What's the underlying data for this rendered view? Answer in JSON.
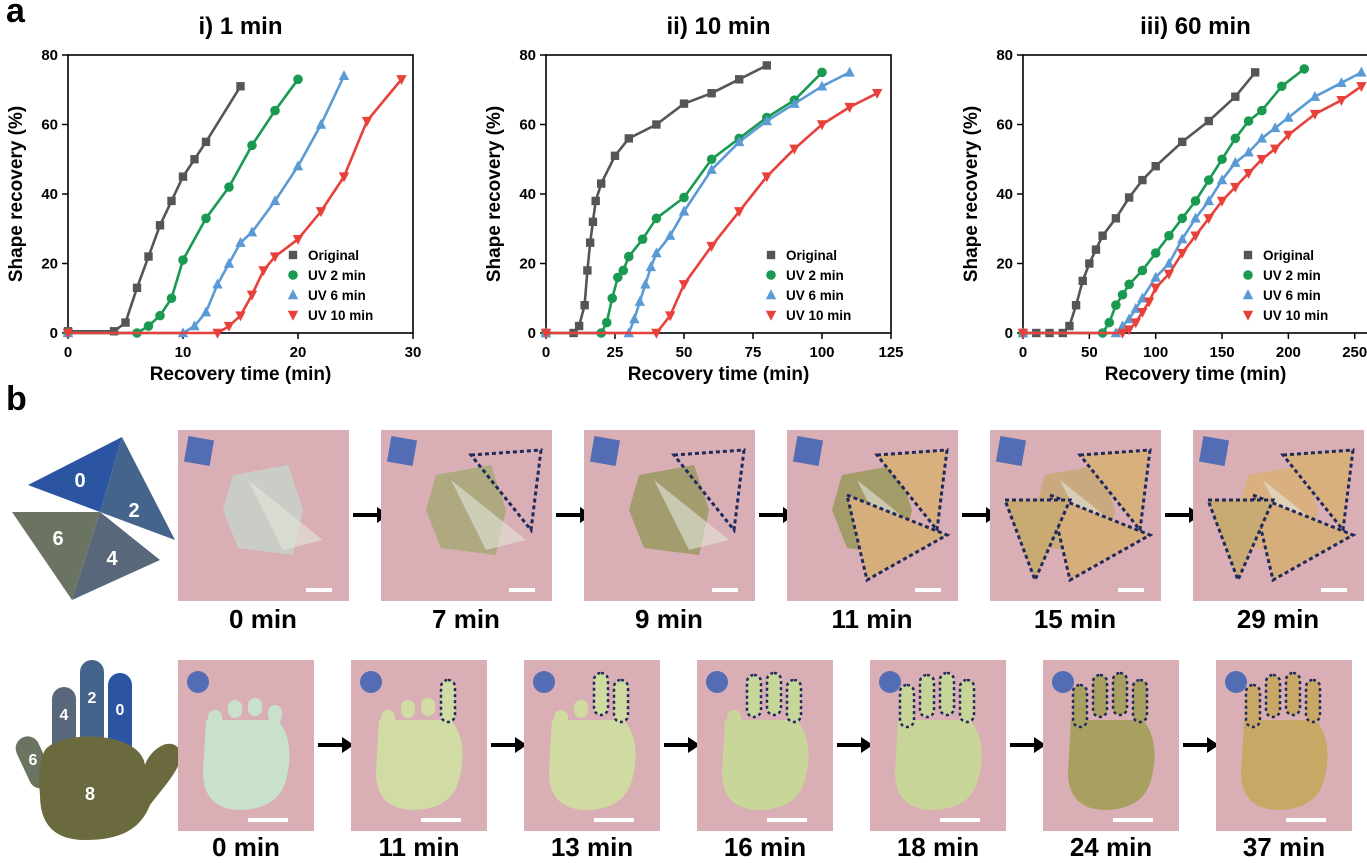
{
  "panel_labels": {
    "a": "a",
    "b": "b"
  },
  "colors": {
    "Original": "#555555",
    "UV 2 min": "#1a9950",
    "UV 6 min": "#5b9bd5",
    "UV 10 min": "#e8403a"
  },
  "chart_data": [
    {
      "type": "line",
      "title": "i) 1 min",
      "xlabel": "Recovery time (min)",
      "ylabel": "Shape recovery (%)",
      "xlim": [
        0,
        30
      ],
      "ylim": [
        0,
        80
      ],
      "xticks": [
        0,
        10,
        20,
        30
      ],
      "yticks": [
        0,
        20,
        40,
        60,
        80
      ],
      "legend_position": "bottom-right",
      "series": [
        {
          "name": "Original",
          "marker": "square",
          "x": [
            0,
            4,
            5,
            6,
            7,
            8,
            9,
            10,
            11,
            12,
            15
          ],
          "y": [
            0.5,
            0.5,
            3,
            13,
            22,
            31,
            38,
            45,
            50,
            55,
            71
          ]
        },
        {
          "name": "UV 2 min",
          "marker": "circle",
          "x": [
            0,
            6,
            7,
            8,
            9,
            10,
            12,
            14,
            16,
            18,
            20
          ],
          "y": [
            0,
            0,
            2,
            5,
            10,
            21,
            33,
            42,
            54,
            64,
            73
          ]
        },
        {
          "name": "UV 6 min",
          "marker": "triangle-up",
          "x": [
            0,
            10,
            11,
            12,
            13,
            14,
            15,
            16,
            18,
            20,
            22,
            24
          ],
          "y": [
            0,
            0,
            2,
            6,
            14,
            20,
            26,
            29,
            38,
            48,
            60,
            74
          ]
        },
        {
          "name": "UV 10 min",
          "marker": "triangle-down",
          "x": [
            0,
            13,
            14,
            15,
            16,
            17,
            18,
            20,
            22,
            24,
            26,
            29
          ],
          "y": [
            0,
            0,
            2,
            5,
            11,
            18,
            22,
            27,
            35,
            45,
            61,
            73
          ]
        }
      ]
    },
    {
      "type": "line",
      "title": "ii) 10 min",
      "xlabel": "Recovery time (min)",
      "ylabel": "Shape recovery (%)",
      "xlim": [
        0,
        125
      ],
      "ylim": [
        0,
        80
      ],
      "xticks": [
        0,
        25,
        50,
        75,
        100,
        125
      ],
      "yticks": [
        0,
        20,
        40,
        60,
        80
      ],
      "legend_position": "bottom-right",
      "series": [
        {
          "name": "Original",
          "marker": "square",
          "x": [
            0,
            10,
            12,
            14,
            15,
            16,
            17,
            18,
            20,
            25,
            30,
            40,
            50,
            60,
            70,
            80
          ],
          "y": [
            0,
            0,
            2,
            8,
            18,
            26,
            32,
            38,
            43,
            51,
            56,
            60,
            66,
            69,
            73,
            77
          ]
        },
        {
          "name": "UV 2 min",
          "marker": "circle",
          "x": [
            0,
            20,
            22,
            24,
            26,
            28,
            30,
            35,
            40,
            50,
            60,
            70,
            80,
            90,
            100
          ],
          "y": [
            0,
            0,
            3,
            10,
            16,
            18,
            22,
            27,
            33,
            39,
            50,
            56,
            62,
            67,
            75
          ]
        },
        {
          "name": "UV 6 min",
          "marker": "triangle-up",
          "x": [
            0,
            30,
            32,
            34,
            36,
            38,
            40,
            45,
            50,
            60,
            70,
            80,
            90,
            100,
            110
          ],
          "y": [
            0,
            0,
            4,
            9,
            14,
            19,
            23,
            28,
            35,
            47,
            55,
            61,
            66,
            71,
            75
          ]
        },
        {
          "name": "UV 10 min",
          "marker": "triangle-down",
          "x": [
            0,
            40,
            45,
            50,
            60,
            70,
            80,
            90,
            100,
            110,
            120
          ],
          "y": [
            0,
            0,
            5,
            14,
            25,
            35,
            45,
            53,
            60,
            65,
            69
          ]
        }
      ]
    },
    {
      "type": "line",
      "title": "iii) 60 min",
      "xlabel": "Recovery time (min)",
      "ylabel": "Shape recovery (%)",
      "xlim": [
        0,
        260
      ],
      "ylim": [
        0,
        80
      ],
      "xticks": [
        0,
        50,
        100,
        150,
        200,
        250
      ],
      "yticks": [
        0,
        20,
        40,
        60,
        80
      ],
      "legend_position": "bottom-right",
      "series": [
        {
          "name": "Original",
          "marker": "square",
          "x": [
            0,
            10,
            20,
            30,
            35,
            40,
            45,
            50,
            55,
            60,
            70,
            80,
            90,
            100,
            120,
            140,
            160,
            175
          ],
          "y": [
            0,
            0,
            0,
            0,
            2,
            8,
            15,
            20,
            24,
            28,
            33,
            39,
            44,
            48,
            55,
            61,
            68,
            75
          ]
        },
        {
          "name": "UV 2 min",
          "marker": "circle",
          "x": [
            0,
            60,
            65,
            70,
            75,
            80,
            90,
            100,
            110,
            120,
            130,
            140,
            150,
            160,
            170,
            180,
            195,
            212
          ],
          "y": [
            0,
            0,
            3,
            8,
            11,
            14,
            18,
            23,
            28,
            33,
            38,
            44,
            50,
            56,
            61,
            64,
            71,
            76
          ]
        },
        {
          "name": "UV 6 min",
          "marker": "triangle-up",
          "x": [
            0,
            70,
            75,
            80,
            85,
            90,
            100,
            110,
            120,
            130,
            140,
            150,
            160,
            170,
            180,
            190,
            200,
            220,
            240,
            255
          ],
          "y": [
            0,
            0,
            2,
            4,
            7,
            10,
            16,
            20,
            27,
            33,
            38,
            44,
            49,
            52,
            56,
            59,
            62,
            68,
            72,
            75
          ]
        },
        {
          "name": "UV 10 min",
          "marker": "triangle-down",
          "x": [
            0,
            75,
            80,
            85,
            90,
            95,
            100,
            110,
            120,
            130,
            140,
            150,
            160,
            170,
            180,
            190,
            200,
            220,
            240,
            255
          ],
          "y": [
            0,
            0,
            1,
            3,
            6,
            9,
            13,
            17,
            23,
            28,
            33,
            38,
            42,
            46,
            50,
            53,
            57,
            63,
            67,
            71
          ]
        }
      ]
    }
  ],
  "pinwheel": {
    "diagram_labels": [
      "0",
      "2",
      "4",
      "6"
    ],
    "times": [
      "0 min",
      "7 min",
      "9 min",
      "11 min",
      "15 min",
      "29 min"
    ]
  },
  "hand": {
    "diagram_labels": [
      "0",
      "2",
      "4",
      "6",
      "8"
    ],
    "times": [
      "0 min",
      "11 min",
      "13 min",
      "16 min",
      "18 min",
      "24 min",
      "37 min"
    ]
  }
}
